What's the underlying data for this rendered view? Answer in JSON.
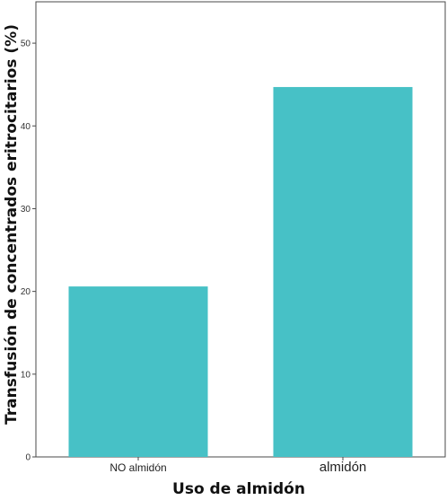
{
  "chart_data": {
    "type": "bar",
    "title": "",
    "xlabel": "Uso de almidón",
    "ylabel": "Transfusión de concentrados eritrocitarios (%)",
    "categories": [
      "NO almidón",
      "almidón"
    ],
    "values": [
      20.6,
      44.7
    ],
    "ylim": [
      0,
      55
    ],
    "yticks": [
      0,
      10,
      20,
      30,
      40,
      50
    ],
    "grid": false,
    "legend": "none",
    "bar_color": "#47c1c6",
    "frame_color": "#4a4a4a"
  }
}
